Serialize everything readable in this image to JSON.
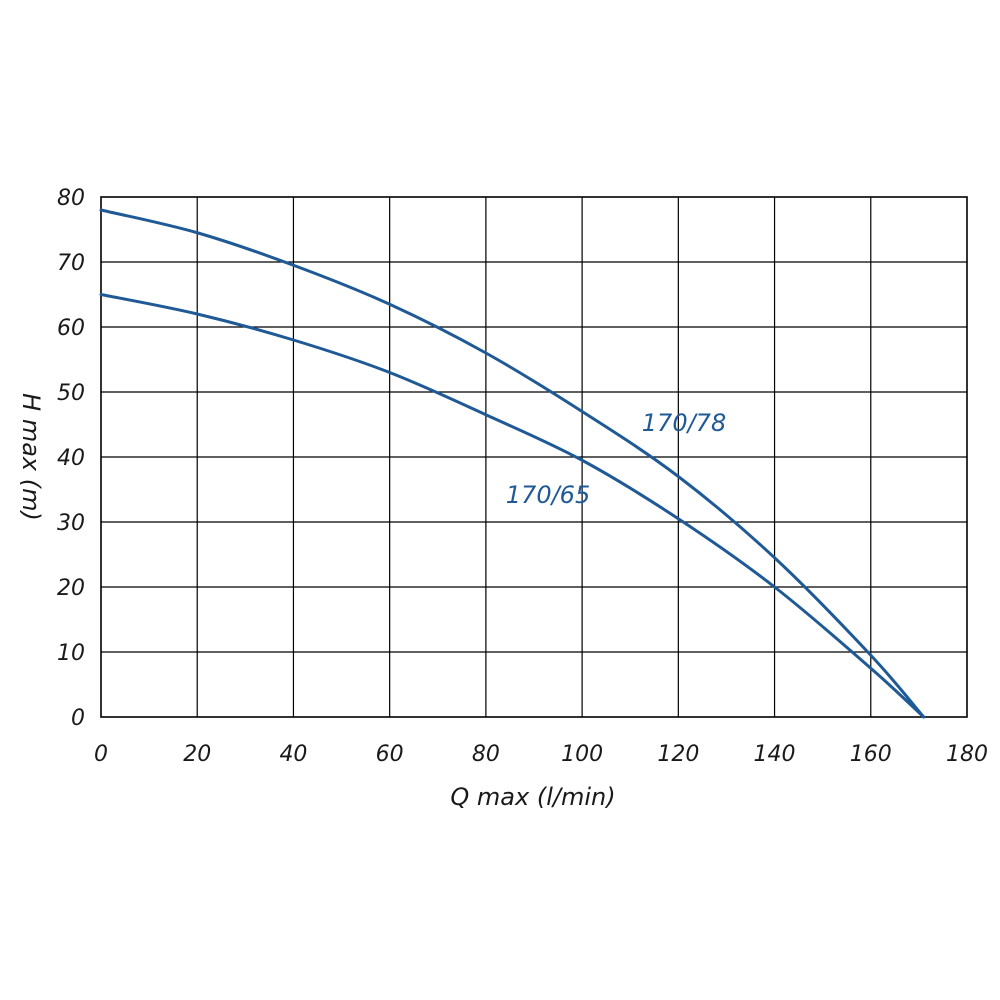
{
  "chart_data": {
    "type": "line",
    "xlabel": "Q max (l/min)",
    "ylabel": "H max (m)",
    "xlim": [
      0,
      180
    ],
    "ylim": [
      0,
      80
    ],
    "x_ticks": [
      "0",
      "20",
      "40",
      "60",
      "80",
      "100",
      "120",
      "140",
      "160",
      "180"
    ],
    "y_ticks": [
      "0",
      "10",
      "20",
      "30",
      "40",
      "50",
      "60",
      "70",
      "80"
    ],
    "grid": true,
    "series_color": "#1f5a96",
    "series": [
      {
        "name": "170/78",
        "x": [
          0,
          20,
          40,
          60,
          80,
          100,
          120,
          140,
          160,
          171
        ],
        "y": [
          78,
          74.5,
          69.5,
          63.5,
          56,
          47,
          37,
          24.5,
          9.5,
          0
        ]
      },
      {
        "name": "170/65",
        "x": [
          0,
          20,
          40,
          60,
          80,
          100,
          120,
          140,
          160,
          171
        ],
        "y": [
          65,
          62,
          58,
          53,
          46.5,
          39.5,
          30.5,
          20,
          7.5,
          0
        ]
      }
    ]
  }
}
